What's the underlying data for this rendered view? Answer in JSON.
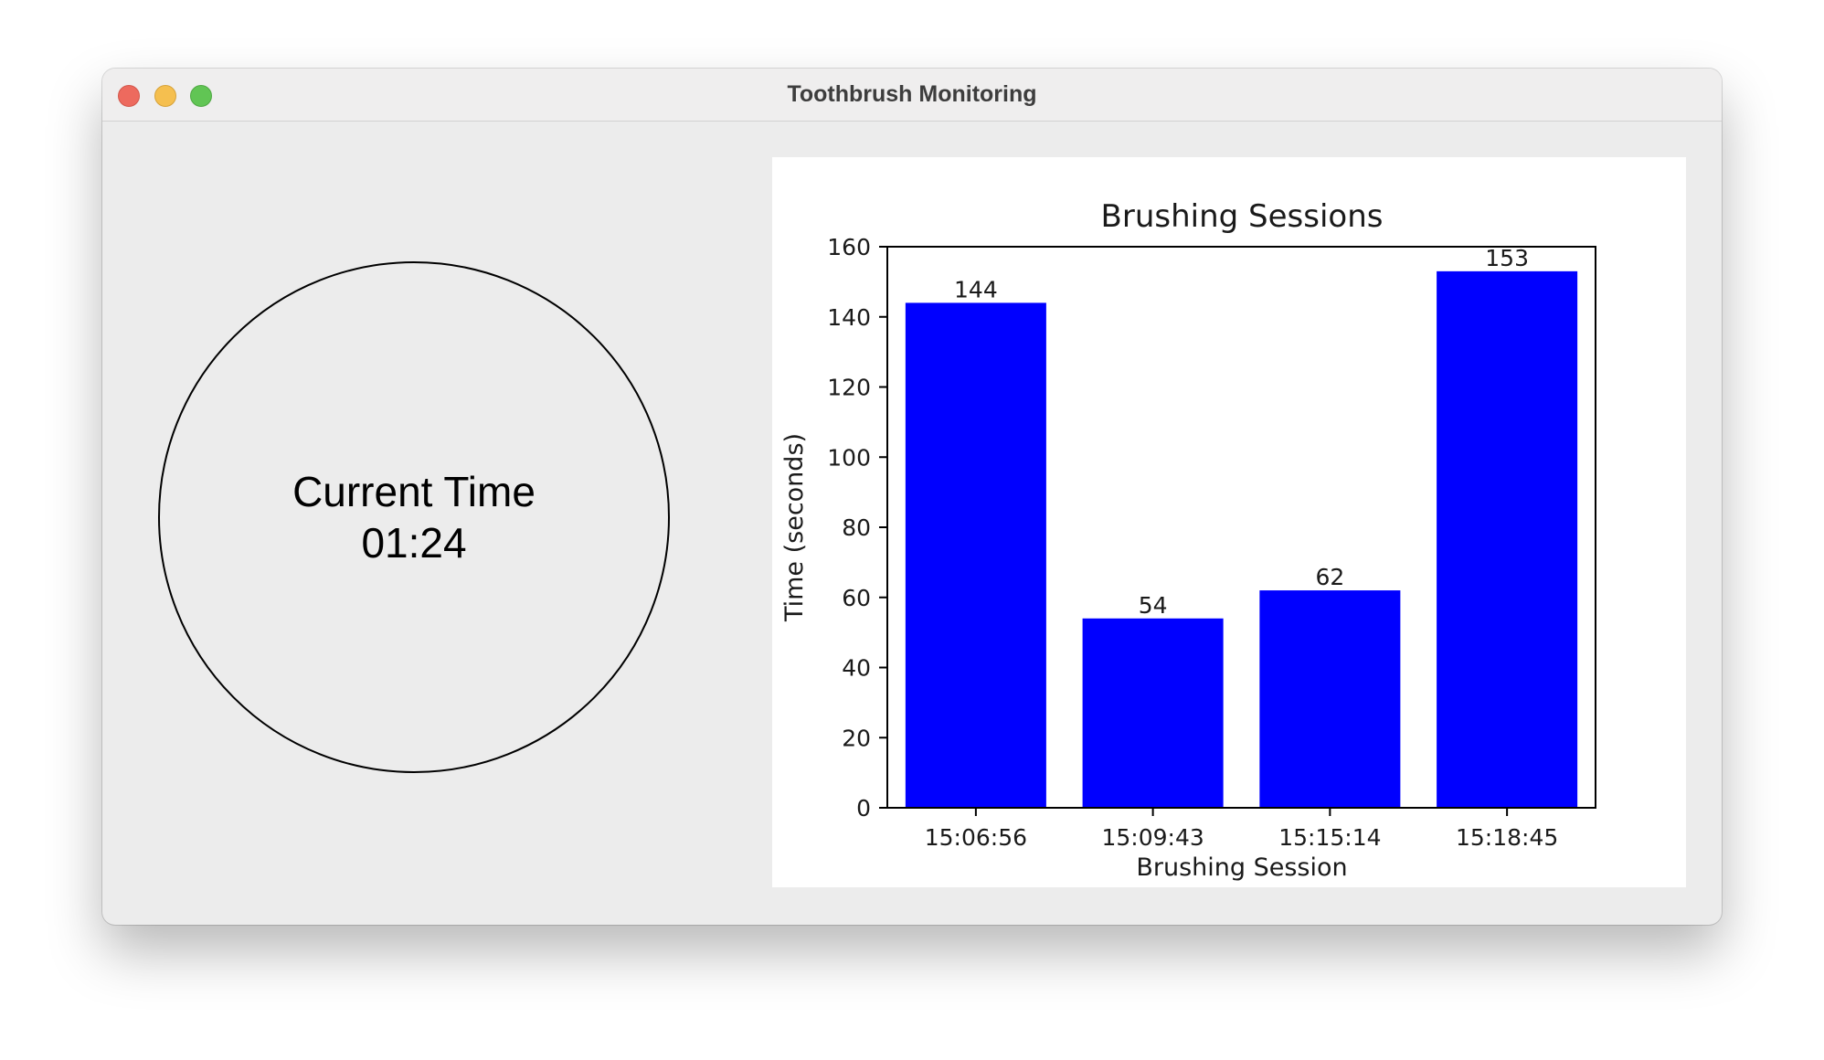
{
  "window": {
    "title": "Toothbrush Monitoring"
  },
  "timer": {
    "label": "Current Time",
    "value": "01:24"
  },
  "colors": {
    "bar": "#0000ff",
    "window_bg": "#ececec",
    "close": "#ed6a5e",
    "minimize": "#f5bf4f",
    "maximize": "#61c554"
  },
  "chart_data": {
    "type": "bar",
    "title": "Brushing Sessions",
    "xlabel": "Brushing Session",
    "ylabel": "Time (seconds)",
    "categories": [
      "15:06:56",
      "15:09:43",
      "15:15:14",
      "15:18:45"
    ],
    "values": [
      144,
      54,
      62,
      153
    ],
    "data_labels": [
      "144",
      "54",
      "62",
      "153"
    ],
    "ylim": [
      0,
      160
    ],
    "yticks": [
      0,
      20,
      40,
      60,
      80,
      100,
      120,
      140,
      160
    ],
    "grid": false,
    "legend": "none"
  }
}
